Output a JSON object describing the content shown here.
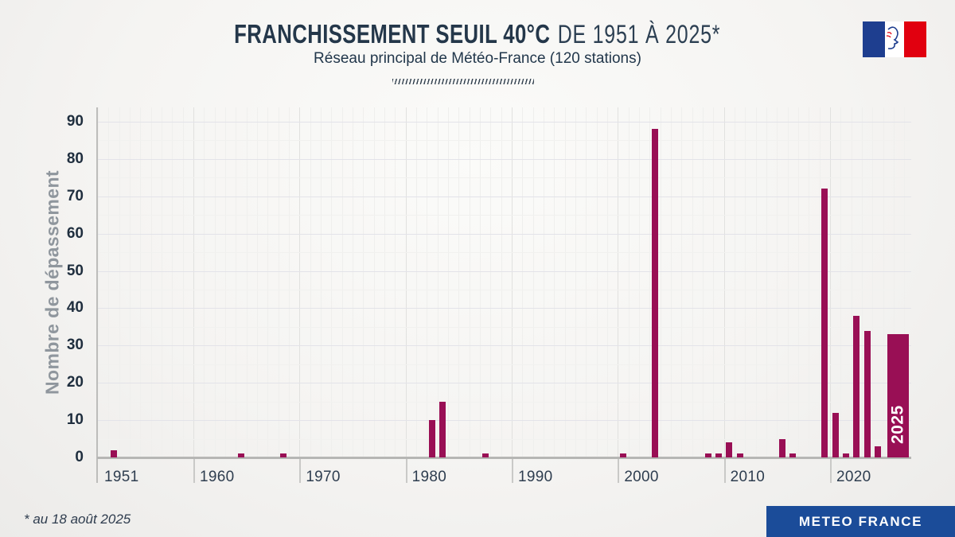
{
  "header": {
    "title_strong": "FRANCHISSEMENT SEUIL 40°C",
    "title_light": "DE 1951 À 2025*",
    "subtitle": "Réseau principal de Météo-France (120 stations)"
  },
  "logo": {
    "name": "republique-francaise-tricolor",
    "blue": "#1e3e8f",
    "red": "#e1000f"
  },
  "footer": {
    "note": "* au 18 août 2025",
    "brand": "METEO FRANCE",
    "brand_bg": "#1b4c99"
  },
  "chart_data": {
    "type": "bar",
    "title": "Franchissement seuil 40°C de 1951 à 2025 — Réseau principal de Météo-France (120 stations)",
    "xlabel": "",
    "ylabel": "Nombre de dépassement",
    "ylim": [
      0,
      90
    ],
    "y_ticks": [
      0,
      10,
      20,
      30,
      40,
      50,
      60,
      70,
      80,
      90
    ],
    "x_tick_years": [
      1951,
      1960,
      1970,
      1980,
      1990,
      2000,
      2010,
      2020
    ],
    "x_range": [
      1951,
      2026
    ],
    "grid": true,
    "legend_position": "none",
    "bar_color": "#990f55",
    "highlight": {
      "year": 2025,
      "label": "2025",
      "label_color": "#ffffff"
    },
    "points": [
      {
        "year": 1952,
        "value": 2
      },
      {
        "year": 1964,
        "value": 1
      },
      {
        "year": 1968,
        "value": 1
      },
      {
        "year": 1982,
        "value": 10
      },
      {
        "year": 1983,
        "value": 15
      },
      {
        "year": 1987,
        "value": 1
      },
      {
        "year": 2000,
        "value": 1
      },
      {
        "year": 2003,
        "value": 88
      },
      {
        "year": 2008,
        "value": 1
      },
      {
        "year": 2009,
        "value": 1
      },
      {
        "year": 2010,
        "value": 4
      },
      {
        "year": 2011,
        "value": 1
      },
      {
        "year": 2015,
        "value": 5
      },
      {
        "year": 2016,
        "value": 1
      },
      {
        "year": 2019,
        "value": 72
      },
      {
        "year": 2020,
        "value": 12
      },
      {
        "year": 2021,
        "value": 1
      },
      {
        "year": 2022,
        "value": 38
      },
      {
        "year": 2023,
        "value": 34
      },
      {
        "year": 2024,
        "value": 3
      },
      {
        "year": 2025,
        "value": 33
      }
    ]
  }
}
